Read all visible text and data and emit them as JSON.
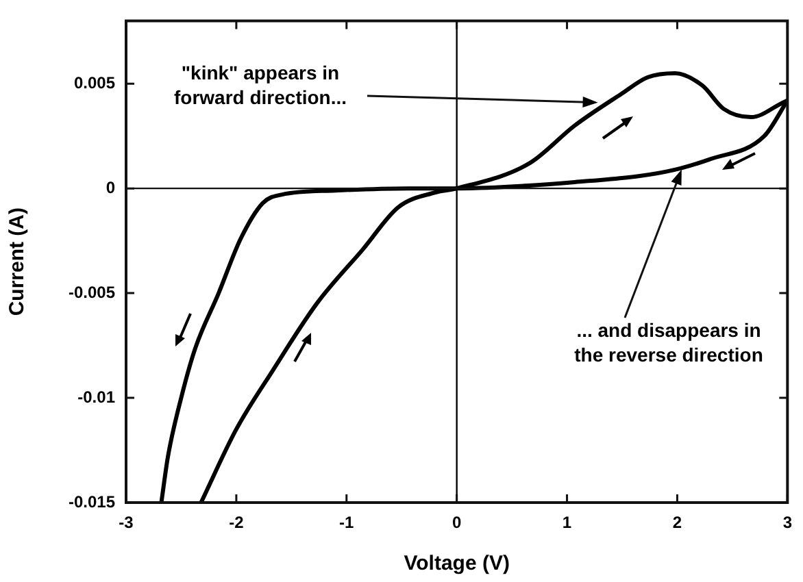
{
  "chart_data": {
    "type": "line",
    "xlabel": "Voltage (V)",
    "ylabel": "Current (A)",
    "xlim": [
      -3,
      3
    ],
    "xticks": [
      -3,
      -2,
      -1,
      0,
      1,
      2,
      3
    ],
    "ylim": [
      -0.015,
      0.008
    ],
    "yticks": [
      -0.015,
      -0.01,
      -0.005,
      0,
      0.005
    ],
    "grid": false,
    "legend": false,
    "marker": "none",
    "line_style": "solid",
    "series": [
      {
        "color": "#000000",
        "x": [
          -2.32,
          -2.0,
          -1.67,
          -1.27,
          -0.85,
          -0.53,
          -0.2,
          0,
          0.66,
          1.07,
          1.49,
          1.73,
          1.98,
          2.23,
          2.42,
          2.67,
          2.96,
          3
        ],
        "values": [
          -0.015,
          -0.0115,
          -0.0087,
          -0.0055,
          -0.0029,
          -0.0009,
          -0.0002,
          0,
          0.0012,
          0.003,
          0.0045,
          0.0053,
          0.0055,
          0.0049,
          0.0038,
          0.0034,
          0.0041,
          0.0042
        ]
      },
      {
        "color": "#000000",
        "x": [
          -2.68,
          -2.62,
          -2.5,
          -2.37,
          -2.16,
          -1.96,
          -1.76,
          -1.59,
          -1.1,
          -0.44,
          0,
          1.07,
          1.9,
          2.3,
          2.79,
          3
        ],
        "values": [
          -0.015,
          -0.0128,
          -0.01,
          -0.0076,
          -0.005,
          -0.0024,
          -0.0007,
          -0.0003,
          -0.0001,
          0,
          0,
          0.0003,
          0.0008,
          0.0014,
          0.0025,
          0.0042
        ]
      }
    ],
    "ref_lines": [
      {
        "axis": "x",
        "value": 0,
        "color": "#000000"
      },
      {
        "axis": "y",
        "value": 0,
        "color": "#111111"
      }
    ],
    "annotations": [
      {
        "text": "\"kink\" appears in\nforward direction...",
        "x": 1.28,
        "y": 0.0041
      },
      {
        "text": "... and disappears in\nthe reverse direction",
        "x": 2.04,
        "y": 0.0009
      }
    ]
  }
}
